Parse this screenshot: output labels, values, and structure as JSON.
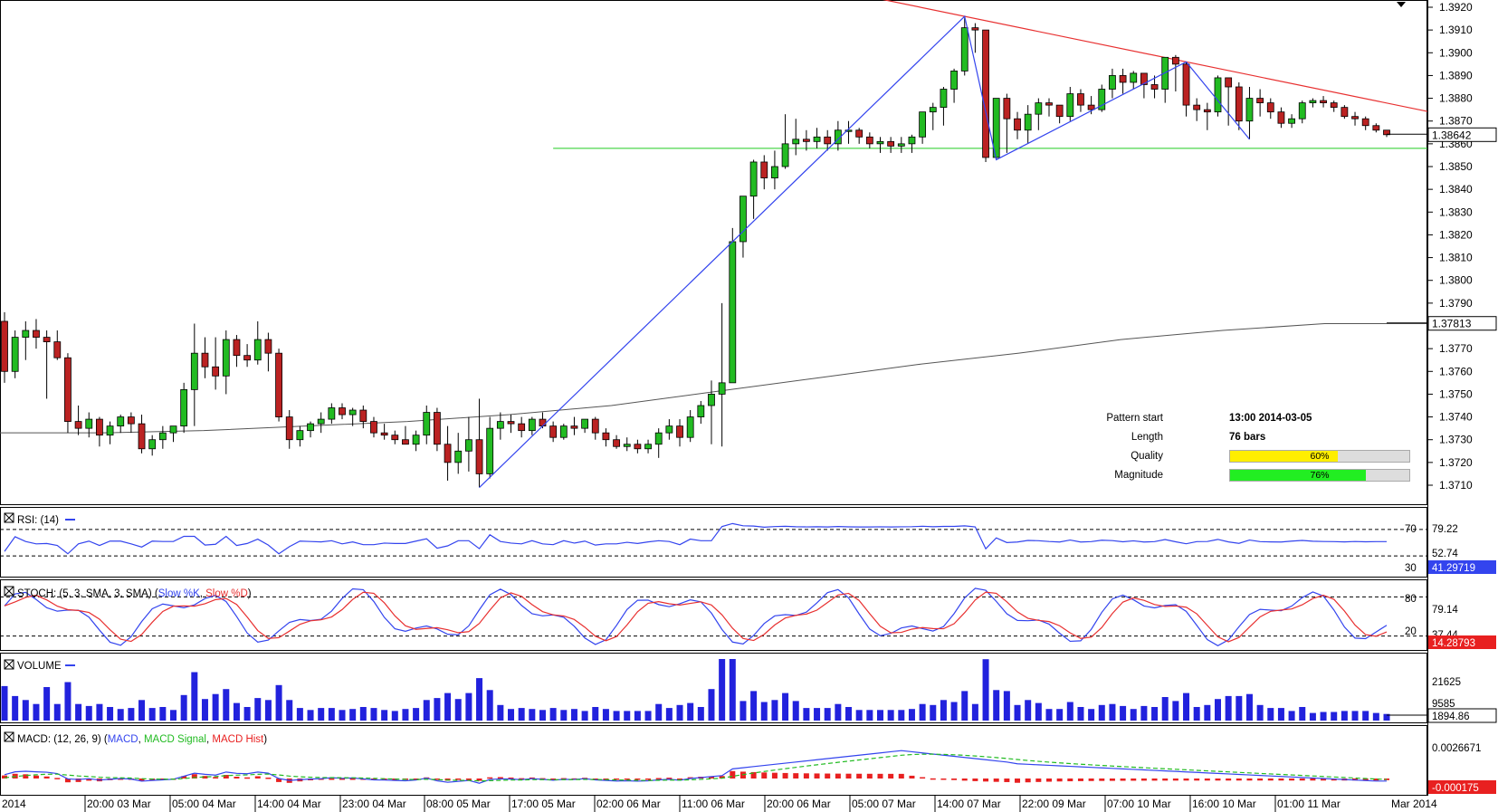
{
  "chart_data": {
    "type": "candlestick",
    "instrument_last": "1.38642",
    "sma_last": "1.37813",
    "price_ticks": [
      "1.3920",
      "1.3910",
      "1.3900",
      "1.3890",
      "1.3880",
      "1.3870",
      "1.3860",
      "1.3850",
      "1.3840",
      "1.3830",
      "1.3820",
      "1.3810",
      "1.3800",
      "1.3790",
      "1.3780",
      "1.3770",
      "1.3760",
      "1.3750",
      "1.3740",
      "1.3730",
      "1.3720",
      "1.3710"
    ],
    "ylim": [
      1.3704,
      1.3924
    ],
    "x_labels": [
      "2014",
      "20:00 03 Mar",
      "05:00 04 Mar",
      "14:00 04 Mar",
      "23:00 04 Mar",
      "08:00 05 Mar",
      "17:00 05 Mar",
      "02:00 06 Mar",
      "11:00 06 Mar",
      "20:00 06 Mar",
      "05:00 07 Mar",
      "14:00 07 Mar",
      "22:00 09 Mar",
      "07:00 10 Mar",
      "16:00 10 Mar",
      "01:00 11 Mar",
      "Mar 2014"
    ],
    "candles_ohlc": [
      [
        1.3782,
        1.3786,
        1.3755,
        1.376
      ],
      [
        1.376,
        1.3778,
        1.3757,
        1.3775
      ],
      [
        1.3775,
        1.3782,
        1.3765,
        1.3778
      ],
      [
        1.3778,
        1.3783,
        1.377,
        1.3775
      ],
      [
        1.3775,
        1.3778,
        1.3748,
        1.3773
      ],
      [
        1.3773,
        1.3778,
        1.3765,
        1.3766
      ],
      [
        1.3766,
        1.3768,
        1.3733,
        1.3738
      ],
      [
        1.3738,
        1.3745,
        1.3732,
        1.3735
      ],
      [
        1.3735,
        1.3742,
        1.3731,
        1.3739
      ],
      [
        1.3739,
        1.374,
        1.3727,
        1.3732
      ],
      [
        1.3732,
        1.3738,
        1.3728,
        1.3736
      ],
      [
        1.3736,
        1.3741,
        1.3733,
        1.374
      ],
      [
        1.374,
        1.3742,
        1.3733,
        1.3737
      ],
      [
        1.3737,
        1.3741,
        1.3724,
        1.3726
      ],
      [
        1.3726,
        1.3732,
        1.3723,
        1.373
      ],
      [
        1.373,
        1.3736,
        1.3726,
        1.3733
      ],
      [
        1.3733,
        1.3736,
        1.3729,
        1.3736
      ],
      [
        1.3736,
        1.3755,
        1.3733,
        1.3752
      ],
      [
        1.3752,
        1.3781,
        1.3736,
        1.3768
      ],
      [
        1.3768,
        1.3775,
        1.3757,
        1.3762
      ],
      [
        1.3762,
        1.3775,
        1.3752,
        1.3758
      ],
      [
        1.3758,
        1.3778,
        1.375,
        1.3774
      ],
      [
        1.3774,
        1.3776,
        1.3762,
        1.3767
      ],
      [
        1.3767,
        1.3772,
        1.3762,
        1.3765
      ],
      [
        1.3765,
        1.3782,
        1.3763,
        1.3774
      ],
      [
        1.3774,
        1.3777,
        1.376,
        1.3768
      ],
      [
        1.3768,
        1.377,
        1.3738,
        1.374
      ],
      [
        1.374,
        1.3743,
        1.3726,
        1.373
      ],
      [
        1.373,
        1.3736,
        1.3727,
        1.3734
      ],
      [
        1.3734,
        1.3738,
        1.3731,
        1.3737
      ],
      [
        1.3737,
        1.3742,
        1.3733,
        1.3739
      ],
      [
        1.3739,
        1.3746,
        1.3737,
        1.3744
      ],
      [
        1.3744,
        1.3746,
        1.3739,
        1.3741
      ],
      [
        1.3741,
        1.3744,
        1.3736,
        1.3743
      ],
      [
        1.3743,
        1.3745,
        1.3735,
        1.3738
      ],
      [
        1.3738,
        1.374,
        1.3731,
        1.3733
      ],
      [
        1.3733,
        1.3737,
        1.373,
        1.3732
      ],
      [
        1.3732,
        1.3734,
        1.3728,
        1.373
      ],
      [
        1.373,
        1.3736,
        1.3728,
        1.3728
      ],
      [
        1.3728,
        1.3734,
        1.3725,
        1.3732
      ],
      [
        1.3732,
        1.3745,
        1.3728,
        1.3742
      ],
      [
        1.3742,
        1.3744,
        1.3725,
        1.3728
      ],
      [
        1.3728,
        1.3736,
        1.3712,
        1.372
      ],
      [
        1.372,
        1.3733,
        1.3715,
        1.3725
      ],
      [
        1.3725,
        1.374,
        1.3716,
        1.373
      ],
      [
        1.373,
        1.3748,
        1.3709,
        1.3715
      ],
      [
        1.3715,
        1.374,
        1.3713,
        1.3735
      ],
      [
        1.3735,
        1.3742,
        1.373,
        1.3738
      ],
      [
        1.3738,
        1.3741,
        1.3733,
        1.3737
      ],
      [
        1.3737,
        1.374,
        1.3731,
        1.3734
      ],
      [
        1.3734,
        1.374,
        1.3732,
        1.3739
      ],
      [
        1.3739,
        1.3742,
        1.3735,
        1.3736
      ],
      [
        1.3736,
        1.3738,
        1.3729,
        1.3731
      ],
      [
        1.3731,
        1.3737,
        1.373,
        1.3736
      ],
      [
        1.3736,
        1.374,
        1.3732,
        1.3735
      ],
      [
        1.3735,
        1.3739,
        1.3733,
        1.3739
      ],
      [
        1.3739,
        1.374,
        1.373,
        1.3733
      ],
      [
        1.3733,
        1.3735,
        1.3727,
        1.373
      ],
      [
        1.373,
        1.3732,
        1.3726,
        1.3727
      ],
      [
        1.3727,
        1.3731,
        1.3725,
        1.3728
      ],
      [
        1.3728,
        1.373,
        1.3724,
        1.3726
      ],
      [
        1.3726,
        1.373,
        1.3724,
        1.3728
      ],
      [
        1.3728,
        1.3735,
        1.3722,
        1.3733
      ],
      [
        1.3733,
        1.3739,
        1.373,
        1.3736
      ],
      [
        1.3736,
        1.3739,
        1.3727,
        1.3731
      ],
      [
        1.3731,
        1.3743,
        1.3729,
        1.374
      ],
      [
        1.374,
        1.3747,
        1.3737,
        1.3745
      ],
      [
        1.3745,
        1.3756,
        1.3728,
        1.375
      ],
      [
        1.375,
        1.379,
        1.3727,
        1.3755
      ],
      [
        1.3755,
        1.3823,
        1.3755,
        1.3817
      ],
      [
        1.3817,
        1.3826,
        1.381,
        1.3837
      ],
      [
        1.3837,
        1.3853,
        1.3827,
        1.3852
      ],
      [
        1.3852,
        1.3855,
        1.384,
        1.3845
      ],
      [
        1.3845,
        1.3857,
        1.384,
        1.385
      ],
      [
        1.385,
        1.3873,
        1.3849,
        1.386
      ],
      [
        1.386,
        1.3871,
        1.3855,
        1.3862
      ],
      [
        1.3862,
        1.3866,
        1.3857,
        1.3861
      ],
      [
        1.3861,
        1.3867,
        1.3858,
        1.3863
      ],
      [
        1.3863,
        1.3866,
        1.3857,
        1.386
      ],
      [
        1.386,
        1.387,
        1.3857,
        1.3866
      ],
      [
        1.3866,
        1.387,
        1.386,
        1.3866
      ],
      [
        1.3866,
        1.3867,
        1.386,
        1.3863
      ],
      [
        1.3863,
        1.3865,
        1.3858,
        1.386
      ],
      [
        1.386,
        1.3863,
        1.3856,
        1.3861
      ],
      [
        1.3861,
        1.3863,
        1.3856,
        1.3859
      ],
      [
        1.3859,
        1.3863,
        1.3856,
        1.386
      ],
      [
        1.386,
        1.3864,
        1.3856,
        1.3863
      ],
      [
        1.3863,
        1.3873,
        1.386,
        1.3874
      ],
      [
        1.3874,
        1.3878,
        1.3866,
        1.3876
      ],
      [
        1.3876,
        1.3885,
        1.3868,
        1.3884
      ],
      [
        1.3884,
        1.3893,
        1.3878,
        1.3892
      ],
      [
        1.3892,
        1.3916,
        1.389,
        1.3911
      ],
      [
        1.3911,
        1.3913,
        1.39,
        1.391
      ],
      [
        1.391,
        1.391,
        1.3852,
        1.3854
      ],
      [
        1.3854,
        1.388,
        1.3853,
        1.388
      ],
      [
        1.388,
        1.3882,
        1.3856,
        1.3871
      ],
      [
        1.3871,
        1.3874,
        1.3862,
        1.3866
      ],
      [
        1.3866,
        1.3877,
        1.386,
        1.3873
      ],
      [
        1.3873,
        1.388,
        1.3866,
        1.3878
      ],
      [
        1.3878,
        1.388,
        1.3872,
        1.3877
      ],
      [
        1.3877,
        1.3877,
        1.3869,
        1.3872
      ],
      [
        1.3872,
        1.3885,
        1.387,
        1.3882
      ],
      [
        1.3882,
        1.3884,
        1.3874,
        1.3877
      ],
      [
        1.3877,
        1.3881,
        1.3873,
        1.3875
      ],
      [
        1.3875,
        1.3886,
        1.3874,
        1.3884
      ],
      [
        1.3884,
        1.3893,
        1.388,
        1.389
      ],
      [
        1.389,
        1.3893,
        1.3882,
        1.3887
      ],
      [
        1.3887,
        1.3892,
        1.3884,
        1.3891
      ],
      [
        1.3891,
        1.3891,
        1.388,
        1.3886
      ],
      [
        1.3886,
        1.389,
        1.388,
        1.3884
      ],
      [
        1.3884,
        1.3898,
        1.3878,
        1.3898
      ],
      [
        1.3898,
        1.3899,
        1.3883,
        1.3895
      ],
      [
        1.3895,
        1.3896,
        1.3872,
        1.3877
      ],
      [
        1.3877,
        1.388,
        1.387,
        1.3875
      ],
      [
        1.3875,
        1.3878,
        1.3866,
        1.3874
      ],
      [
        1.3874,
        1.389,
        1.3872,
        1.3889
      ],
      [
        1.3889,
        1.3889,
        1.3868,
        1.3885
      ],
      [
        1.3885,
        1.3887,
        1.3866,
        1.387
      ],
      [
        1.387,
        1.3885,
        1.3862,
        1.388
      ],
      [
        1.388,
        1.3884,
        1.3872,
        1.3878
      ],
      [
        1.3878,
        1.388,
        1.3871,
        1.3874
      ],
      [
        1.3874,
        1.3876,
        1.3867,
        1.3869
      ],
      [
        1.3869,
        1.3873,
        1.3867,
        1.3871
      ],
      [
        1.3871,
        1.3879,
        1.3869,
        1.3878
      ],
      [
        1.3878,
        1.388,
        1.3876,
        1.3879
      ],
      [
        1.3879,
        1.3881,
        1.3876,
        1.3878
      ],
      [
        1.3878,
        1.3879,
        1.3874,
        1.3876
      ],
      [
        1.3876,
        1.3877,
        1.3871,
        1.3872
      ],
      [
        1.3872,
        1.3874,
        1.3868,
        1.3871
      ],
      [
        1.3871,
        1.3872,
        1.3866,
        1.3868
      ],
      [
        1.3868,
        1.3869,
        1.3865,
        1.3866
      ],
      [
        1.3866,
        1.3866,
        1.3863,
        1.3864
      ]
    ],
    "sma": [
      1.3733,
      1.3733,
      1.3734,
      1.3736,
      1.3738,
      1.3741,
      1.3745,
      1.3751,
      1.3757,
      1.3763,
      1.3768,
      1.3774,
      1.3778,
      1.3781,
      1.3781
    ],
    "horizontal_level": 1.3858,
    "info": {
      "pattern_start_label": "Pattern start",
      "pattern_start_value": "13:00 2014-03-05",
      "length_label": "Length",
      "length_value": "76 bars",
      "quality_label": "Quality",
      "quality_value": "60%",
      "quality_pct": 60,
      "magnitude_label": "Magnitude",
      "magnitude_value": "76%",
      "magnitude_pct": 76
    },
    "rsi": {
      "title": "RSI: (14)",
      "ticks": [
        "79.22",
        "52.74"
      ],
      "levels": [
        "70",
        "30"
      ],
      "last": "41.29719"
    },
    "stoch": {
      "title": "STOCH: (5, 3, SMA, 3, SMA)",
      "k_label": "Slow %K",
      "d_label": "Slow %D",
      "ticks": [
        "79.14",
        "37.44"
      ],
      "levels": [
        "80",
        "20"
      ],
      "last": "14.28793"
    },
    "volume": {
      "title": "VOLUME",
      "ticks": [
        "21625",
        "9585"
      ],
      "last": "1894.86"
    },
    "macd": {
      "title": "MACD: (12, 26, 9)",
      "macd_label": "MACD",
      "signal_label": "MACD Signal",
      "hist_label": "MACD Hist",
      "ticks": [
        "0.0026671"
      ],
      "last": "-0.000175"
    }
  }
}
